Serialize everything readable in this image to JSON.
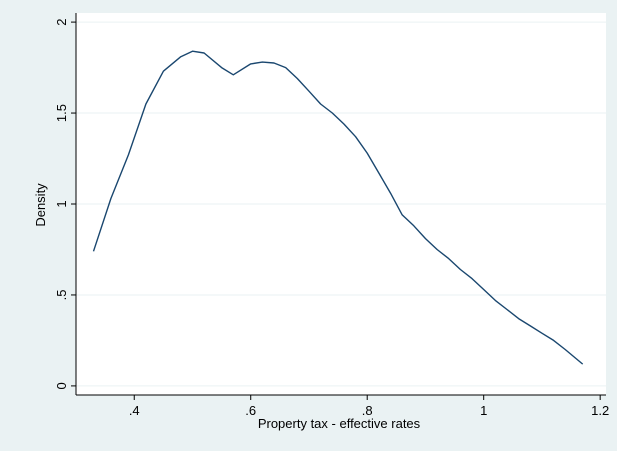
{
  "chart_data": {
    "type": "line",
    "title": "",
    "xlabel": "Property tax - effective rates",
    "ylabel": "Density",
    "xlim": [
      0.3,
      1.21
    ],
    "ylim": [
      -0.05,
      2.05
    ],
    "x_ticks": [
      {
        "value": 0.4,
        "label": ".4"
      },
      {
        "value": 0.6,
        "label": ".6"
      },
      {
        "value": 0.8,
        "label": ".8"
      },
      {
        "value": 1.0,
        "label": "1"
      },
      {
        "value": 1.2,
        "label": "1.2"
      }
    ],
    "y_ticks": [
      {
        "value": 0,
        "label": "0"
      },
      {
        "value": 0.5,
        "label": ".5"
      },
      {
        "value": 1,
        "label": "1"
      },
      {
        "value": 1.5,
        "label": "1.5"
      },
      {
        "value": 2,
        "label": "2"
      }
    ],
    "grid": "horizontal",
    "series": [
      {
        "x": [
          0.33,
          0.36,
          0.39,
          0.42,
          0.45,
          0.48,
          0.5,
          0.52,
          0.55,
          0.57,
          0.6,
          0.62,
          0.64,
          0.66,
          0.68,
          0.7,
          0.72,
          0.74,
          0.76,
          0.78,
          0.8,
          0.82,
          0.84,
          0.86,
          0.88,
          0.9,
          0.92,
          0.94,
          0.96,
          0.98,
          1.0,
          1.02,
          1.04,
          1.06,
          1.08,
          1.1,
          1.12,
          1.14,
          1.17
        ],
        "y": [
          0.74,
          1.03,
          1.27,
          1.55,
          1.73,
          1.81,
          1.84,
          1.83,
          1.75,
          1.71,
          1.77,
          1.78,
          1.775,
          1.75,
          1.69,
          1.62,
          1.55,
          1.5,
          1.44,
          1.37,
          1.28,
          1.17,
          1.06,
          0.94,
          0.88,
          0.81,
          0.75,
          0.7,
          0.64,
          0.59,
          0.53,
          0.47,
          0.42,
          0.37,
          0.33,
          0.29,
          0.25,
          0.2,
          0.12
        ],
        "color": "#1a476f"
      }
    ]
  },
  "colors": {
    "background": "#eaf2f3",
    "plot_background": "#ffffff",
    "grid": "#eaf2f3",
    "line": "#1a476f",
    "axis": "#000000"
  }
}
